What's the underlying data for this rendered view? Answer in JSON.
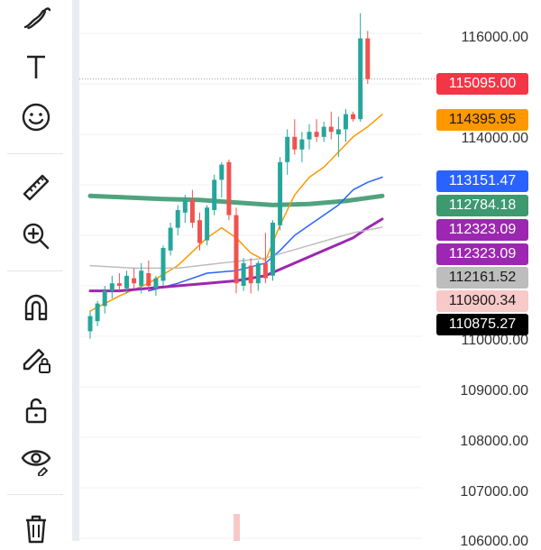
{
  "toolbar": {
    "items": [
      {
        "icon": "brush-icon"
      },
      {
        "icon": "text-tool-icon"
      },
      {
        "icon": "emoji-icon"
      },
      {
        "icon": "ruler-icon"
      },
      {
        "icon": "zoom-in-icon"
      },
      {
        "icon": "magnet-icon"
      },
      {
        "icon": "lock-drawing-icon"
      },
      {
        "icon": "unlock-icon"
      },
      {
        "icon": "eye-icon"
      },
      {
        "icon": "trash-icon"
      }
    ]
  },
  "price_axis": {
    "labels": [
      "116000.00",
      "114000.00",
      "110000.00",
      "109000.00",
      "108000.00",
      "107000.00",
      "106000.00"
    ]
  },
  "price_badges": [
    {
      "value": "115095.00",
      "bg": "#f23645",
      "fg": "#ffffff"
    },
    {
      "value": "114395.95",
      "bg": "#ff9800",
      "fg": "#1a1a1a"
    },
    {
      "value": "113151.47",
      "bg": "#2962ff",
      "fg": "#ffffff"
    },
    {
      "value": "112784.18",
      "bg": "#3d9970",
      "fg": "#ffffff"
    },
    {
      "value": "112323.09",
      "bg": "#9c27b0",
      "fg": "#ffffff"
    },
    {
      "value": "112323.09",
      "bg": "#9c27b0",
      "fg": "#ffffff"
    },
    {
      "value": "112161.52",
      "bg": "#bdbdbd",
      "fg": "#1a1a1a"
    },
    {
      "value": "110900.34",
      "bg": "#f8c9c9",
      "fg": "#1a1a1a"
    },
    {
      "value": "110875.27",
      "bg": "#000000",
      "fg": "#ffffff"
    }
  ],
  "colors": {
    "up": "#26a69a",
    "down": "#ef5350"
  },
  "chart_data": {
    "type": "candlestick",
    "ylim": [
      105900,
      116400
    ],
    "last_price": 115095.0,
    "candles": [
      {
        "o": 110100,
        "h": 110500,
        "l": 109950,
        "c": 110400
      },
      {
        "o": 110300,
        "h": 110700,
        "l": 110200,
        "c": 110650
      },
      {
        "o": 110600,
        "h": 111000,
        "l": 110450,
        "c": 110900
      },
      {
        "o": 110900,
        "h": 111200,
        "l": 110750,
        "c": 111050
      },
      {
        "o": 111050,
        "h": 111250,
        "l": 110900,
        "c": 111000
      },
      {
        "o": 110950,
        "h": 111300,
        "l": 110850,
        "c": 111200
      },
      {
        "o": 111150,
        "h": 111350,
        "l": 110950,
        "c": 111050
      },
      {
        "o": 111000,
        "h": 111450,
        "l": 110850,
        "c": 111300
      },
      {
        "o": 111250,
        "h": 111500,
        "l": 110900,
        "c": 111000
      },
      {
        "o": 110950,
        "h": 111200,
        "l": 110800,
        "c": 111150
      },
      {
        "o": 111100,
        "h": 111800,
        "l": 111000,
        "c": 111750
      },
      {
        "o": 111700,
        "h": 112250,
        "l": 111600,
        "c": 112150
      },
      {
        "o": 112150,
        "h": 112600,
        "l": 112000,
        "c": 112500
      },
      {
        "o": 112450,
        "h": 112800,
        "l": 112250,
        "c": 112700
      },
      {
        "o": 112700,
        "h": 112900,
        "l": 112150,
        "c": 112250
      },
      {
        "o": 112300,
        "h": 112450,
        "l": 111700,
        "c": 111850
      },
      {
        "o": 111900,
        "h": 112600,
        "l": 111800,
        "c": 112550
      },
      {
        "o": 112500,
        "h": 113200,
        "l": 112400,
        "c": 113100
      },
      {
        "o": 113100,
        "h": 113450,
        "l": 112750,
        "c": 113400
      },
      {
        "o": 113450,
        "h": 113500,
        "l": 112300,
        "c": 112400
      },
      {
        "o": 112400,
        "h": 112550,
        "l": 110850,
        "c": 111050
      },
      {
        "o": 111000,
        "h": 111550,
        "l": 110900,
        "c": 111450
      },
      {
        "o": 111400,
        "h": 111550,
        "l": 110850,
        "c": 111050
      },
      {
        "o": 111050,
        "h": 111500,
        "l": 110900,
        "c": 111450
      },
      {
        "o": 111450,
        "h": 112050,
        "l": 111050,
        "c": 111150
      },
      {
        "o": 111200,
        "h": 112300,
        "l": 111100,
        "c": 112250
      },
      {
        "o": 112200,
        "h": 113550,
        "l": 112100,
        "c": 113450
      },
      {
        "o": 113450,
        "h": 114100,
        "l": 113200,
        "c": 113950
      },
      {
        "o": 113950,
        "h": 114300,
        "l": 113600,
        "c": 113700
      },
      {
        "o": 113700,
        "h": 114050,
        "l": 113450,
        "c": 113900
      },
      {
        "o": 113900,
        "h": 114200,
        "l": 113700,
        "c": 114050
      },
      {
        "o": 114050,
        "h": 114300,
        "l": 113850,
        "c": 113950
      },
      {
        "o": 113950,
        "h": 114250,
        "l": 113850,
        "c": 114150
      },
      {
        "o": 114150,
        "h": 114450,
        "l": 113900,
        "c": 114050
      },
      {
        "o": 114000,
        "h": 114350,
        "l": 113550,
        "c": 114100
      },
      {
        "o": 114100,
        "h": 114500,
        "l": 113850,
        "c": 114400
      },
      {
        "o": 114400,
        "h": 114450,
        "l": 114250,
        "c": 114300
      },
      {
        "o": 114300,
        "h": 116400,
        "l": 114250,
        "c": 115900
      },
      {
        "o": 115900,
        "h": 116050,
        "l": 115000,
        "c": 115095
      }
    ],
    "ma_lines": [
      {
        "color": "#3d9970",
        "width": 5,
        "points": [
          [
            0,
            112780
          ],
          [
            5,
            112750
          ],
          [
            10,
            112720
          ],
          [
            15,
            112700
          ],
          [
            20,
            112650
          ],
          [
            25,
            112600
          ],
          [
            30,
            112620
          ],
          [
            35,
            112680
          ],
          [
            40,
            112780
          ]
        ]
      },
      {
        "color": "#ff9800",
        "width": 1.5,
        "points": [
          [
            0,
            110500
          ],
          [
            4,
            110800
          ],
          [
            8,
            111050
          ],
          [
            12,
            111400
          ],
          [
            16,
            111950
          ],
          [
            18,
            112150
          ],
          [
            20,
            111950
          ],
          [
            22,
            111650
          ],
          [
            24,
            111500
          ],
          [
            26,
            112200
          ],
          [
            28,
            112800
          ],
          [
            30,
            113150
          ],
          [
            32,
            113350
          ],
          [
            34,
            113650
          ],
          [
            36,
            113950
          ],
          [
            38,
            114150
          ],
          [
            40,
            114395
          ]
        ]
      },
      {
        "color": "#2962ff",
        "width": 1.5,
        "points": [
          [
            8,
            110900
          ],
          [
            12,
            111050
          ],
          [
            16,
            111250
          ],
          [
            20,
            111300
          ],
          [
            24,
            111450
          ],
          [
            26,
            111700
          ],
          [
            28,
            112000
          ],
          [
            30,
            112200
          ],
          [
            32,
            112400
          ],
          [
            34,
            112600
          ],
          [
            36,
            112900
          ],
          [
            38,
            113050
          ],
          [
            40,
            113151
          ]
        ]
      },
      {
        "color": "#9c27b0",
        "width": 3,
        "points": [
          [
            0,
            110900
          ],
          [
            4,
            110900
          ],
          [
            8,
            110950
          ],
          [
            12,
            111000
          ],
          [
            16,
            111050
          ],
          [
            20,
            111100
          ],
          [
            24,
            111200
          ],
          [
            28,
            111450
          ],
          [
            32,
            111700
          ],
          [
            36,
            111950
          ],
          [
            38,
            112150
          ],
          [
            40,
            112323
          ]
        ]
      },
      {
        "color": "#bdbdbd",
        "width": 1.5,
        "points": [
          [
            0,
            111400
          ],
          [
            6,
            111350
          ],
          [
            12,
            111350
          ],
          [
            18,
            111450
          ],
          [
            24,
            111550
          ],
          [
            30,
            111800
          ],
          [
            36,
            112050
          ],
          [
            40,
            112161
          ]
        ]
      }
    ]
  }
}
